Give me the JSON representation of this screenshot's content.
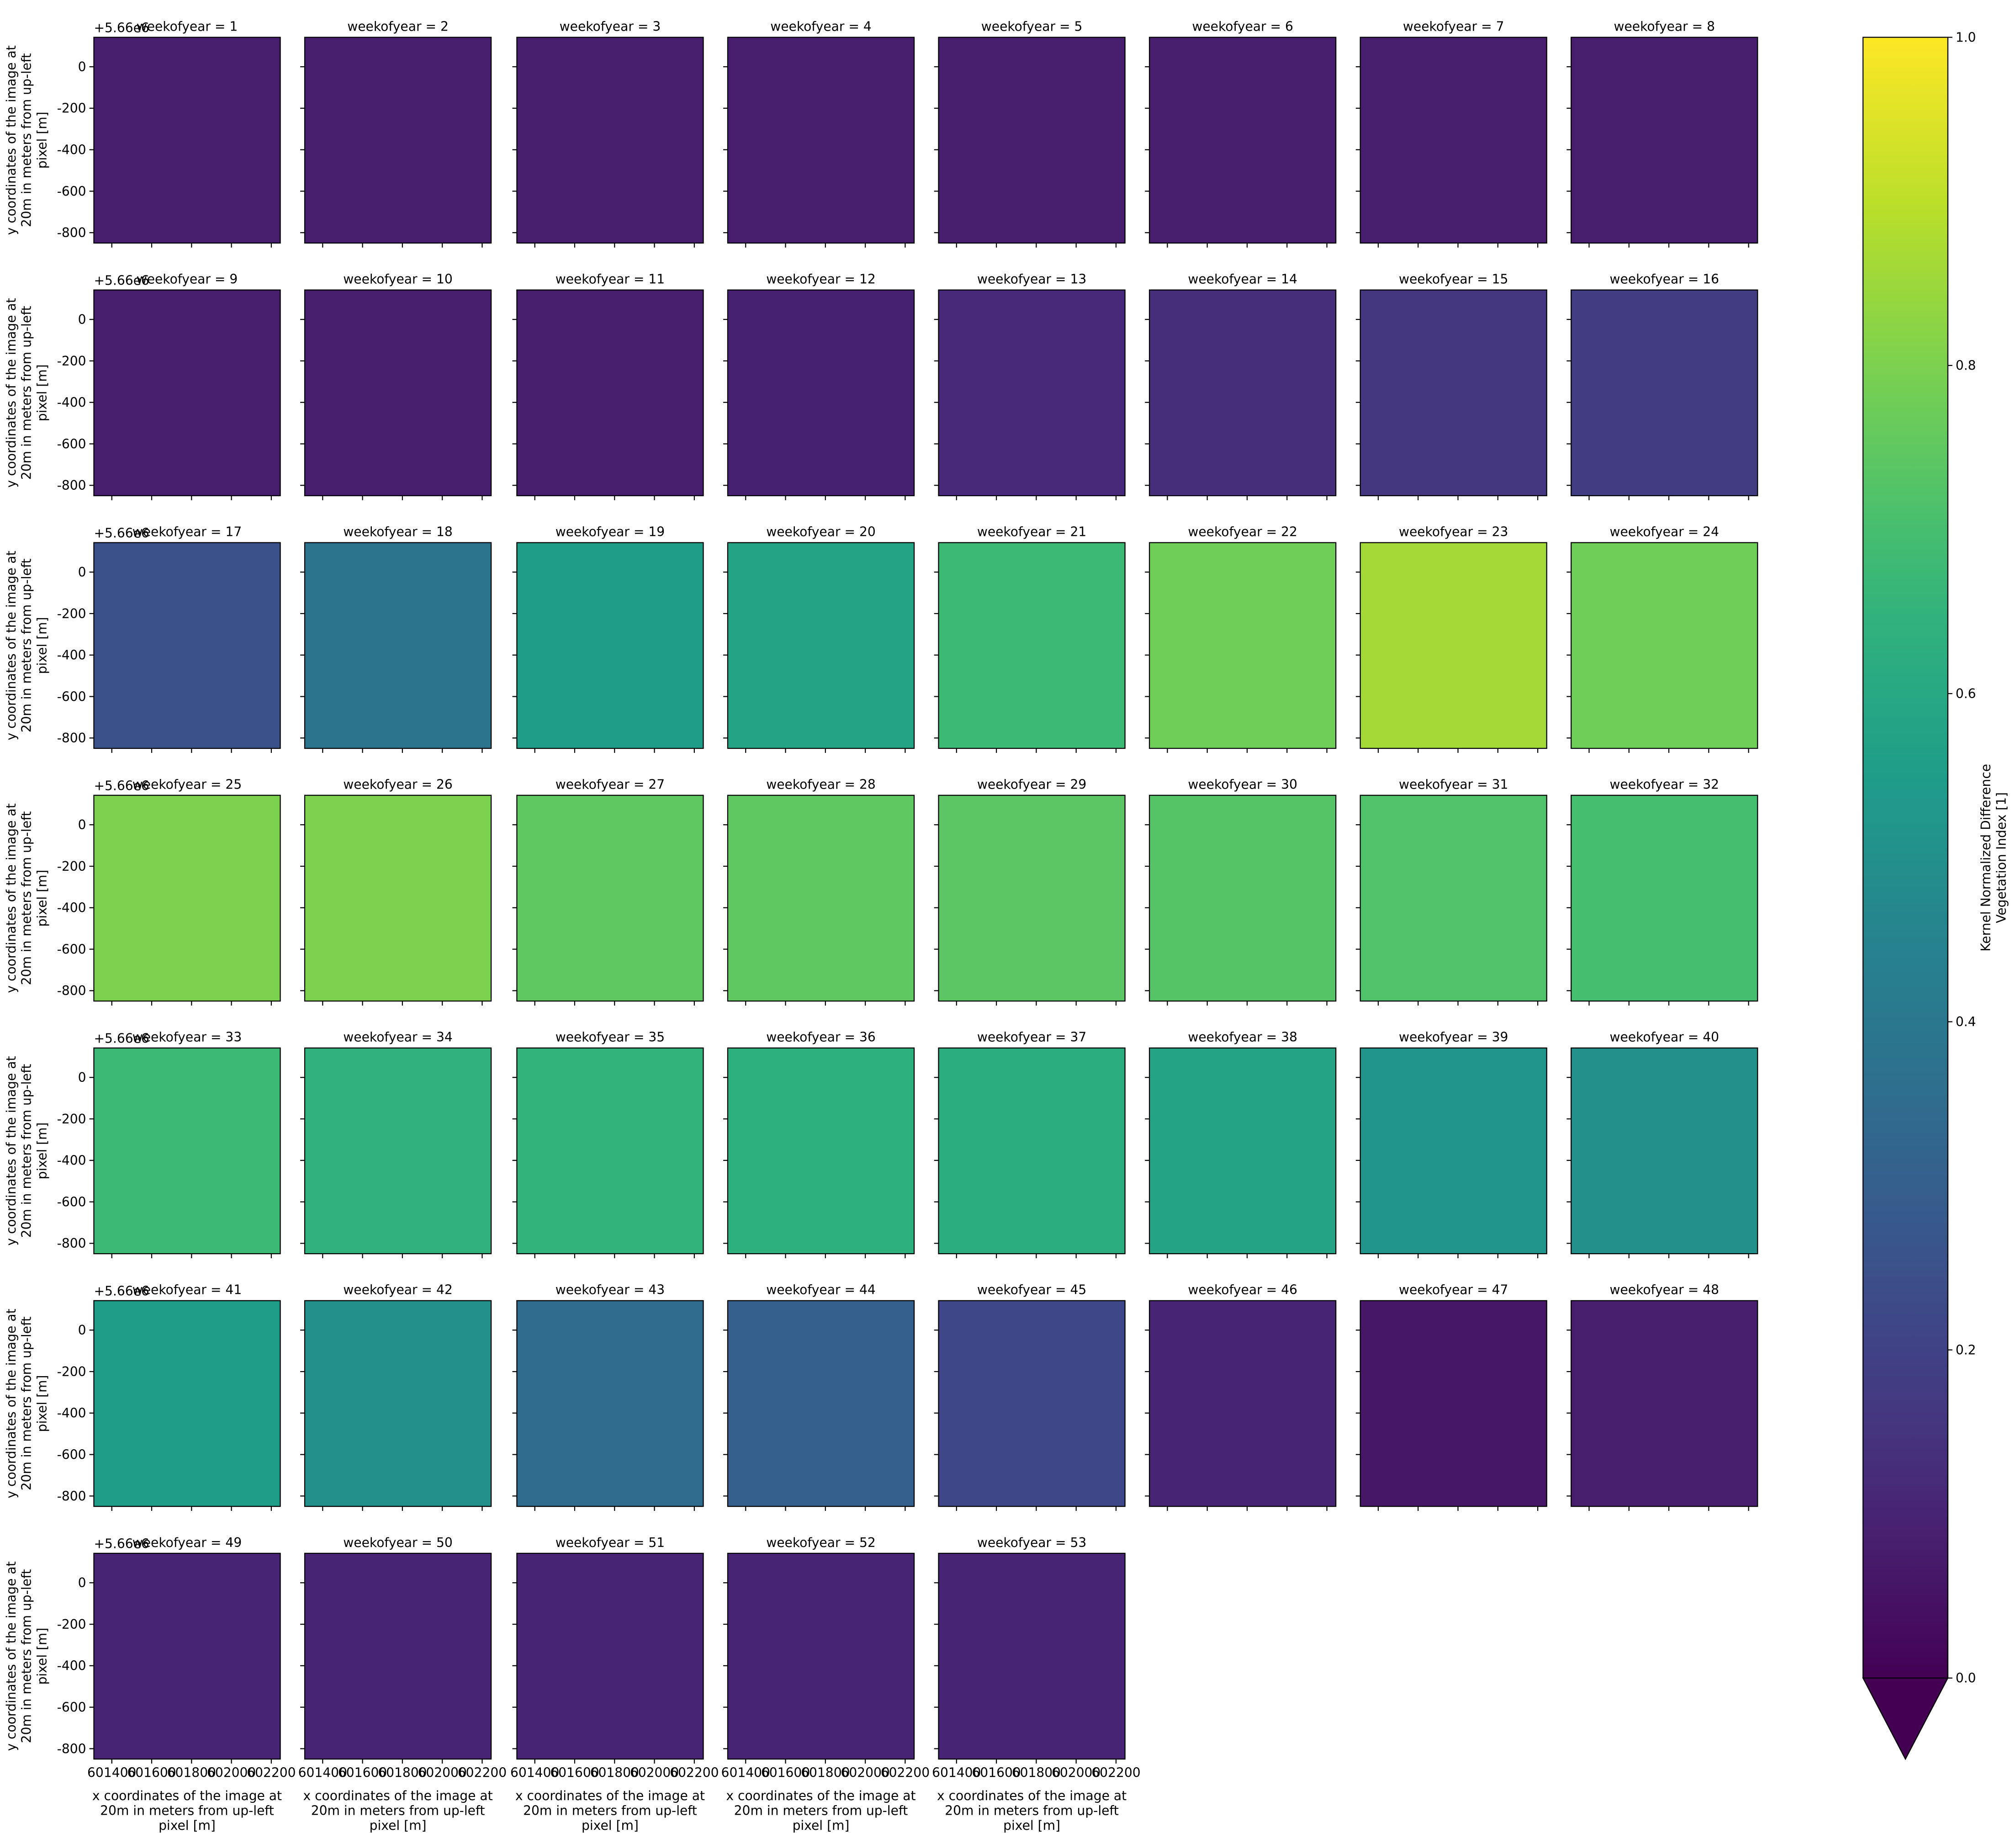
{
  "chart_data": {
    "type": "heatmap",
    "colormap": "viridis",
    "facet_titles": [
      "weekofyear = 1",
      "weekofyear = 2",
      "weekofyear = 3",
      "weekofyear = 4",
      "weekofyear = 5",
      "weekofyear = 6",
      "weekofyear = 7",
      "weekofyear = 8",
      "weekofyear = 9",
      "weekofyear = 10",
      "weekofyear = 11",
      "weekofyear = 12",
      "weekofyear = 13",
      "weekofyear = 14",
      "weekofyear = 15",
      "weekofyear = 16",
      "weekofyear = 17",
      "weekofyear = 18",
      "weekofyear = 19",
      "weekofyear = 20",
      "weekofyear = 21",
      "weekofyear = 22",
      "weekofyear = 23",
      "weekofyear = 24",
      "weekofyear = 25",
      "weekofyear = 26",
      "weekofyear = 27",
      "weekofyear = 28",
      "weekofyear = 29",
      "weekofyear = 30",
      "weekofyear = 31",
      "weekofyear = 32",
      "weekofyear = 33",
      "weekofyear = 34",
      "weekofyear = 35",
      "weekofyear = 36",
      "weekofyear = 37",
      "weekofyear = 38",
      "weekofyear = 39",
      "weekofyear = 40",
      "weekofyear = 41",
      "weekofyear = 42",
      "weekofyear = 43",
      "weekofyear = 44",
      "weekofyear = 45",
      "weekofyear = 46",
      "weekofyear = 47",
      "weekofyear = 48",
      "weekofyear = 49",
      "weekofyear = 50",
      "weekofyear = 51",
      "weekofyear = 52",
      "weekofyear = 53"
    ],
    "values": [
      0.08,
      0.08,
      0.08,
      0.08,
      0.08,
      0.08,
      0.08,
      0.08,
      0.08,
      0.08,
      0.08,
      0.09,
      0.11,
      0.13,
      0.16,
      0.18,
      0.25,
      0.38,
      0.55,
      0.58,
      0.68,
      0.78,
      0.86,
      0.78,
      0.8,
      0.8,
      0.75,
      0.75,
      0.74,
      0.73,
      0.72,
      0.7,
      0.68,
      0.64,
      0.65,
      0.63,
      0.62,
      0.58,
      0.52,
      0.5,
      0.55,
      0.5,
      0.35,
      0.3,
      0.22,
      0.1,
      0.06,
      0.08,
      0.1,
      0.1,
      0.1,
      0.1,
      0.1
    ],
    "columns": 8,
    "xlabel": [
      "x coordinates of the image at",
      "20m in meters from up-left",
      "pixel [m]"
    ],
    "ylabel": [
      "y coordinates of the image at",
      "20m in meters from up-left",
      "pixel [m]"
    ],
    "y_offset": "+5.66e6",
    "xlim": [
      601310,
      602245
    ],
    "xticks": [
      601400,
      601600,
      601800,
      602000,
      602200
    ],
    "ylim": [
      -850,
      142
    ],
    "yticks": [
      0,
      -200,
      -400,
      -600,
      -800
    ],
    "colorbar": {
      "label": [
        "Kernel Normalized Difference",
        "Vegetation Index [1]"
      ],
      "lim": [
        0,
        1
      ],
      "extend": "min",
      "ticks": [
        {
          "value": 0,
          "label": "0.0"
        },
        {
          "value": 0.2,
          "label": "0.2"
        },
        {
          "value": 0.4,
          "label": "0.4"
        },
        {
          "value": 0.6,
          "label": "0.6"
        },
        {
          "value": 0.8,
          "label": "0.8"
        },
        {
          "value": 1,
          "label": "1.0"
        }
      ]
    }
  }
}
